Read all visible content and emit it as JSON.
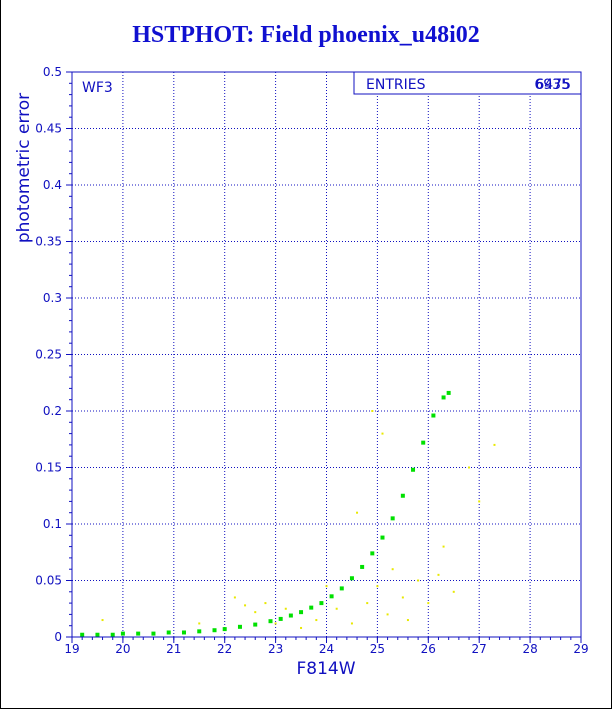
{
  "title": "HSTPHOT: Field phoenix_u48i02",
  "chart_data": {
    "type": "scatter",
    "title": "HSTPHOT: Field phoenix_u48i02",
    "xlabel": "F814W",
    "ylabel": "photometric error",
    "xlim": [
      19,
      29
    ],
    "ylim": [
      0,
      0.5
    ],
    "xticks": [
      "19",
      "20",
      "21",
      "22",
      "23",
      "24",
      "25",
      "26",
      "27",
      "28",
      "29"
    ],
    "yticks": [
      "0",
      "0.05",
      "0.1",
      "0.15",
      "0.2",
      "0.25",
      "0.3",
      "0.35",
      "0.4",
      "0.45",
      "0.5"
    ],
    "grid": true,
    "panel_label": "WF3",
    "stats_box": {
      "label": "ENTRIES",
      "value": "6935",
      "overlap_value": "6475"
    },
    "series": [
      {
        "color": "#00e000",
        "points": [
          [
            19.2,
            0.002
          ],
          [
            19.5,
            0.002
          ],
          [
            19.8,
            0.002
          ],
          [
            20.0,
            0.003
          ],
          [
            20.3,
            0.003
          ],
          [
            20.6,
            0.003
          ],
          [
            20.9,
            0.004
          ],
          [
            21.2,
            0.004
          ],
          [
            21.5,
            0.005
          ],
          [
            21.8,
            0.006
          ],
          [
            22.0,
            0.007
          ],
          [
            22.3,
            0.009
          ],
          [
            22.6,
            0.011
          ],
          [
            22.9,
            0.014
          ],
          [
            23.1,
            0.016
          ],
          [
            23.3,
            0.019
          ],
          [
            23.5,
            0.022
          ],
          [
            23.7,
            0.026
          ],
          [
            23.9,
            0.03
          ],
          [
            24.1,
            0.036
          ],
          [
            24.3,
            0.043
          ],
          [
            24.5,
            0.052
          ],
          [
            24.7,
            0.062
          ],
          [
            24.9,
            0.074
          ],
          [
            25.1,
            0.088
          ],
          [
            25.3,
            0.105
          ],
          [
            25.5,
            0.125
          ],
          [
            25.7,
            0.148
          ],
          [
            25.9,
            0.172
          ],
          [
            26.1,
            0.196
          ],
          [
            26.3,
            0.212
          ],
          [
            26.4,
            0.216
          ]
        ]
      },
      {
        "color": "#e8e800",
        "points": [
          [
            19.6,
            0.015
          ],
          [
            21.5,
            0.012
          ],
          [
            22.2,
            0.035
          ],
          [
            22.4,
            0.028
          ],
          [
            22.6,
            0.022
          ],
          [
            22.8,
            0.03
          ],
          [
            23.0,
            0.012
          ],
          [
            23.2,
            0.025
          ],
          [
            23.5,
            0.008
          ],
          [
            23.8,
            0.015
          ],
          [
            24.0,
            0.045
          ],
          [
            24.2,
            0.025
          ],
          [
            24.5,
            0.012
          ],
          [
            24.8,
            0.03
          ],
          [
            25.0,
            0.045
          ],
          [
            25.2,
            0.02
          ],
          [
            25.3,
            0.06
          ],
          [
            25.5,
            0.035
          ],
          [
            25.6,
            0.015
          ],
          [
            25.8,
            0.05
          ],
          [
            26.0,
            0.03
          ],
          [
            26.2,
            0.055
          ],
          [
            26.5,
            0.04
          ],
          [
            26.8,
            0.15
          ],
          [
            27.0,
            0.12
          ],
          [
            27.3,
            0.17
          ],
          [
            26.3,
            0.08
          ],
          [
            24.6,
            0.11
          ],
          [
            25.1,
            0.18
          ],
          [
            24.9,
            0.2
          ]
        ]
      }
    ]
  }
}
